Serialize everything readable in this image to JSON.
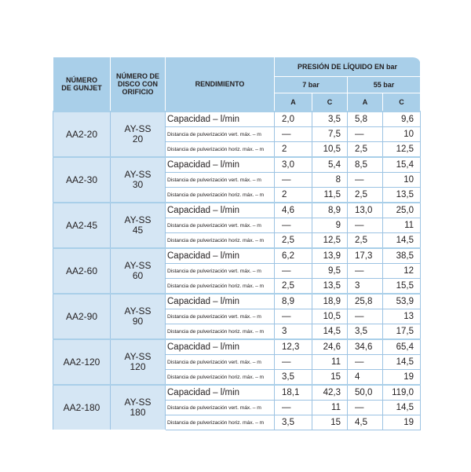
{
  "header": {
    "col1": [
      "NÚMERO",
      "DE GUNJET"
    ],
    "col2": [
      "NÚMERO DE",
      "DISCO CON",
      "ORIFICIO"
    ],
    "col3": "RENDIMIENTO",
    "pressure": "PRESIÓN DE LÍQUIDO EN bar",
    "p1": "7 bar",
    "p2": "55 bar",
    "sub": [
      "A",
      "C",
      "A",
      "C"
    ]
  },
  "groups": [
    {
      "gunjet": "AA2-20",
      "disc": [
        "AY-SS",
        "20"
      ],
      "rows": [
        {
          "label": "Capacidad – l/min",
          "values": [
            "2,0",
            "3,5",
            "5,8",
            "9,6"
          ]
        },
        {
          "label": "Distancia de pulverización vert. máx. – m",
          "values": [
            "—",
            "7,5",
            "—",
            "10"
          ]
        },
        {
          "label": "Distancia de pulverización horiz. máx. – m",
          "values": [
            "2",
            "10,5",
            "2,5",
            "12,5"
          ]
        }
      ]
    },
    {
      "gunjet": "AA2-30",
      "disc": [
        "AY-SS",
        "30"
      ],
      "rows": [
        {
          "label": "Capacidad – l/min",
          "values": [
            "3,0",
            "5,4",
            "8,5",
            "15,4"
          ]
        },
        {
          "label": "Distancia de pulverización vert. máx. – m",
          "values": [
            "—",
            "8",
            "—",
            "10"
          ]
        },
        {
          "label": "Distancia de pulverización horiz. máx. – m",
          "values": [
            "2",
            "11,5",
            "2,5",
            "13,5"
          ]
        }
      ]
    },
    {
      "gunjet": "AA2-45",
      "disc": [
        "AY-SS",
        "45"
      ],
      "rows": [
        {
          "label": "Capacidad – l/min",
          "values": [
            "4,6",
            "8,9",
            "13,0",
            "25,0"
          ]
        },
        {
          "label": "Distancia de pulverización vert. máx. – m",
          "values": [
            "—",
            "9",
            "—",
            "11"
          ]
        },
        {
          "label": "Distancia de pulverización horiz. máx. – m",
          "values": [
            "2,5",
            "12,5",
            "2,5",
            "14,5"
          ]
        }
      ]
    },
    {
      "gunjet": "AA2-60",
      "disc": [
        "AY-SS",
        "60"
      ],
      "rows": [
        {
          "label": "Capacidad – l/min",
          "values": [
            "6,2",
            "13,9",
            "17,3",
            "38,5"
          ]
        },
        {
          "label": "Distancia de pulverización vert. máx. – m",
          "values": [
            "—",
            "9,5",
            "—",
            "12"
          ]
        },
        {
          "label": "Distancia de pulverización horiz. máx. – m",
          "values": [
            "2,5",
            "13,5",
            "3",
            "15,5"
          ]
        }
      ]
    },
    {
      "gunjet": "AA2-90",
      "disc": [
        "AY-SS",
        "90"
      ],
      "rows": [
        {
          "label": "Capacidad – l/min",
          "values": [
            "8,9",
            "18,9",
            "25,8",
            "53,9"
          ]
        },
        {
          "label": "Distancia de pulverización vert. máx. – m",
          "values": [
            "—",
            "10,5",
            "—",
            "13"
          ]
        },
        {
          "label": "Distancia de pulverización horiz. máx. – m",
          "values": [
            "3",
            "14,5",
            "3,5",
            "17,5"
          ]
        }
      ]
    },
    {
      "gunjet": "AA2-120",
      "disc": [
        "AY-SS",
        "120"
      ],
      "rows": [
        {
          "label": "Capacidad – l/min",
          "values": [
            "12,3",
            "24,6",
            "34,6",
            "65,4"
          ]
        },
        {
          "label": "Distancia de pulverización vert. máx. – m",
          "values": [
            "—",
            "11",
            "—",
            "14,5"
          ]
        },
        {
          "label": "Distancia de pulverización horiz. máx. – m",
          "values": [
            "3,5",
            "15",
            "4",
            "19"
          ]
        }
      ]
    },
    {
      "gunjet": "AA2-180",
      "disc": [
        "AY-SS",
        "180"
      ],
      "rows": [
        {
          "label": "Capacidad – l/min",
          "values": [
            "18,1",
            "42,3",
            "50,0",
            "119,0"
          ]
        },
        {
          "label": "Distancia de pulverización vert. máx. – m",
          "values": [
            "—",
            "11",
            "—",
            "14,5"
          ]
        },
        {
          "label": "Distancia de pulverización horiz. máx. – m",
          "values": [
            "3,5",
            "15",
            "4,5",
            "19"
          ]
        }
      ]
    }
  ]
}
